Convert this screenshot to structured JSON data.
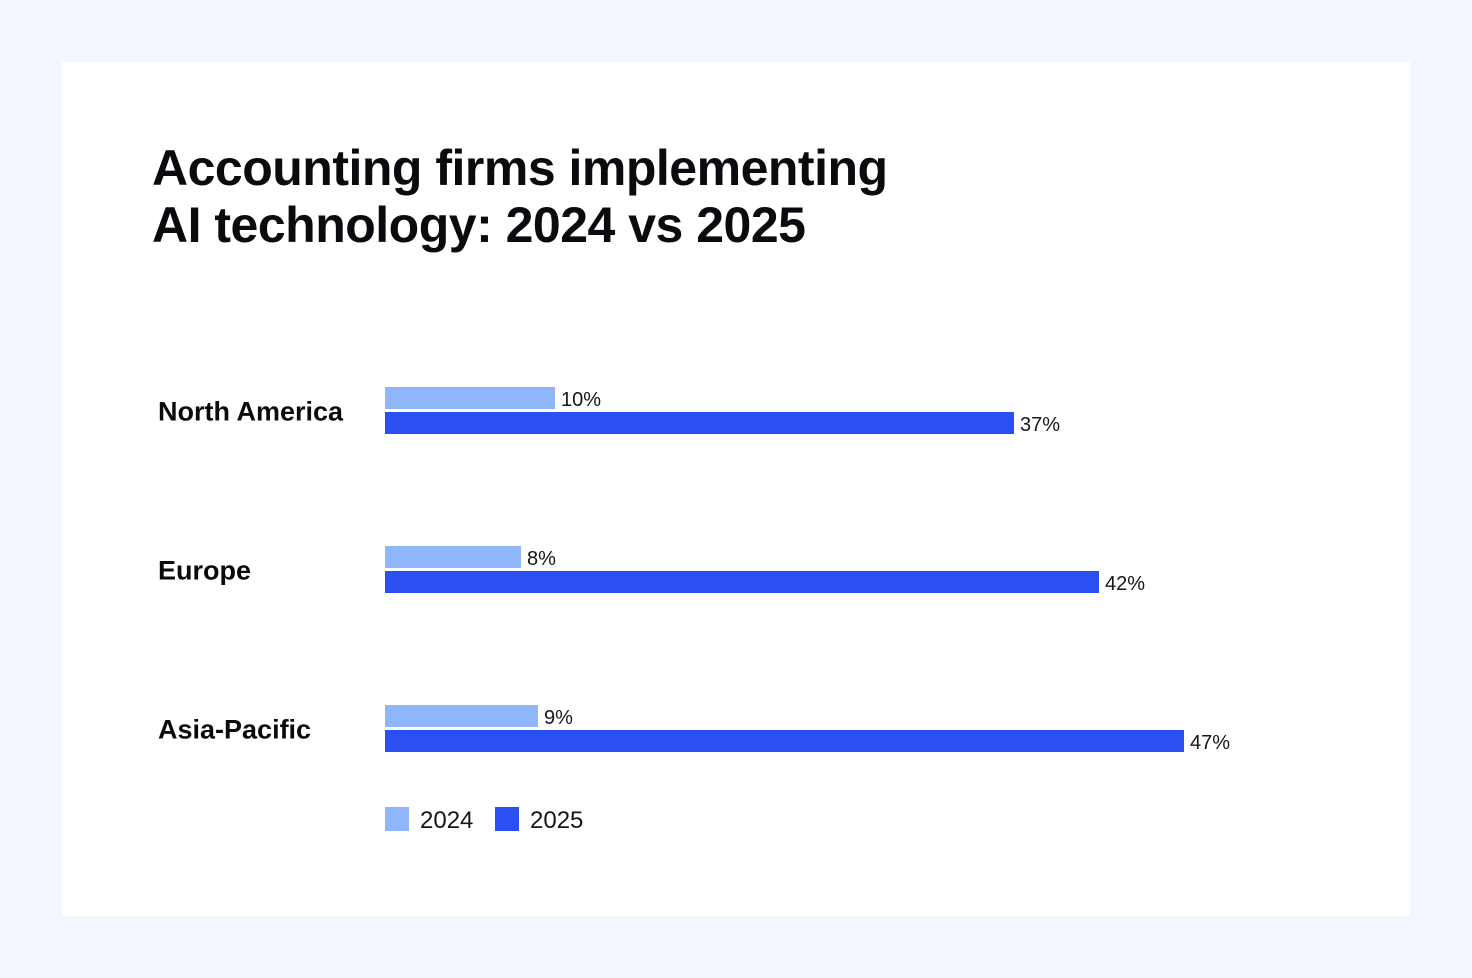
{
  "page": {
    "title_line1": "Accounting firms implementing",
    "title_line2": "AI technology: 2024 vs 2025"
  },
  "colors": {
    "page_background": "#f3f6fd",
    "card_background": "#ffffff",
    "series_2024": "#8fb6fb",
    "series_2025": "#2a50f2",
    "text": "#0b0b0f"
  },
  "chart_data": {
    "type": "bar",
    "orientation": "horizontal",
    "title": "Accounting firms implementing AI technology: 2024 vs 2025",
    "categories": [
      "North America",
      "Europe",
      "Asia-Pacific"
    ],
    "series": [
      {
        "name": "2024",
        "values": [
          10,
          8,
          9
        ],
        "labels": [
          "10%",
          "8%",
          "9%"
        ],
        "color": "#8fb6fb"
      },
      {
        "name": "2025",
        "values": [
          37,
          42,
          47
        ],
        "labels": [
          "37%",
          "42%",
          "47%"
        ],
        "color": "#2a50f2"
      }
    ],
    "unit": "%",
    "xlim": [
      0,
      47
    ],
    "grid": false,
    "legend": "bottom-left"
  }
}
